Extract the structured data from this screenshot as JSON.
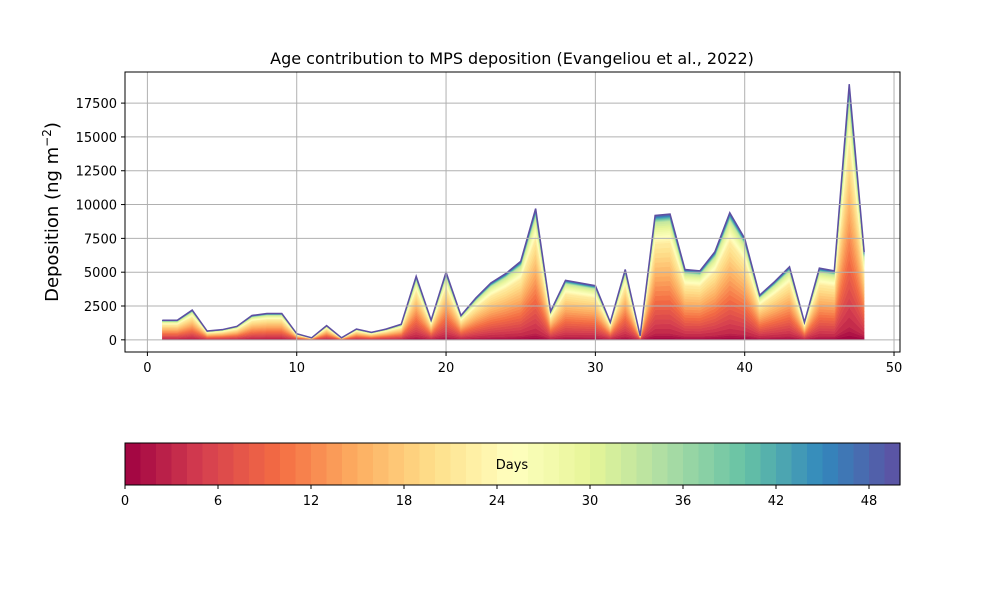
{
  "chart_data": {
    "type": "area",
    "title": "Age contribution to MPS deposition (Evangeliou et al., 2022)",
    "ylabel": "Deposition (ng m",
    "ylabel_sup": "−2",
    "ylabel_close": ")",
    "xlabel": "",
    "xlim": [
      -1.5,
      50.4
    ],
    "ylim": [
      -900,
      19800
    ],
    "xticks": [
      0,
      10,
      20,
      30,
      40,
      50
    ],
    "yticks": [
      0,
      2500,
      5000,
      7500,
      10000,
      12500,
      15000,
      17500
    ],
    "ytick_labels": [
      "0",
      "2500",
      "5000",
      "7500",
      "10000",
      "12500",
      "15000",
      "17500"
    ],
    "xtick_labels": [
      "0",
      "10",
      "20",
      "30",
      "40",
      "50"
    ],
    "grid": true,
    "stacked": true,
    "n_layers": 50,
    "x": [
      1,
      2,
      3,
      4,
      5,
      6,
      7,
      8,
      9,
      10,
      11,
      12,
      13,
      14,
      15,
      16,
      17,
      18,
      19,
      20,
      21,
      22,
      23,
      24,
      25,
      26,
      27,
      28,
      29,
      30,
      31,
      32,
      33,
      34,
      35,
      36,
      37,
      38,
      39,
      40,
      41,
      42,
      43,
      44,
      45,
      46,
      47,
      48
    ],
    "total": [
      1450,
      1450,
      2200,
      650,
      750,
      1000,
      1800,
      1950,
      1950,
      450,
      150,
      1050,
      150,
      800,
      550,
      800,
      1150,
      4700,
      1450,
      5000,
      1800,
      3100,
      4200,
      4900,
      5800,
      9700,
      2100,
      4400,
      4200,
      4000,
      1300,
      5200,
      300,
      9200,
      9300,
      5200,
      5100,
      6500,
      9400,
      7500,
      3300,
      4300,
      5400,
      1300,
      5300,
      5100,
      18900,
      6500
    ],
    "colormap": {
      "name": "Spectral",
      "stops": [
        "#9e0142",
        "#d53e4f",
        "#f46d43",
        "#fdae61",
        "#fee08b",
        "#ffffbf",
        "#e6f598",
        "#abdda4",
        "#66c2a5",
        "#3288bd",
        "#5e4fa2"
      ]
    },
    "colorbar": {
      "label": "Days",
      "range": [
        0,
        50
      ],
      "ticks": [
        0,
        6,
        12,
        18,
        24,
        30,
        36,
        42,
        48
      ],
      "tick_labels": [
        "0",
        "6",
        "12",
        "18",
        "24",
        "30",
        "36",
        "42",
        "48"
      ]
    }
  }
}
